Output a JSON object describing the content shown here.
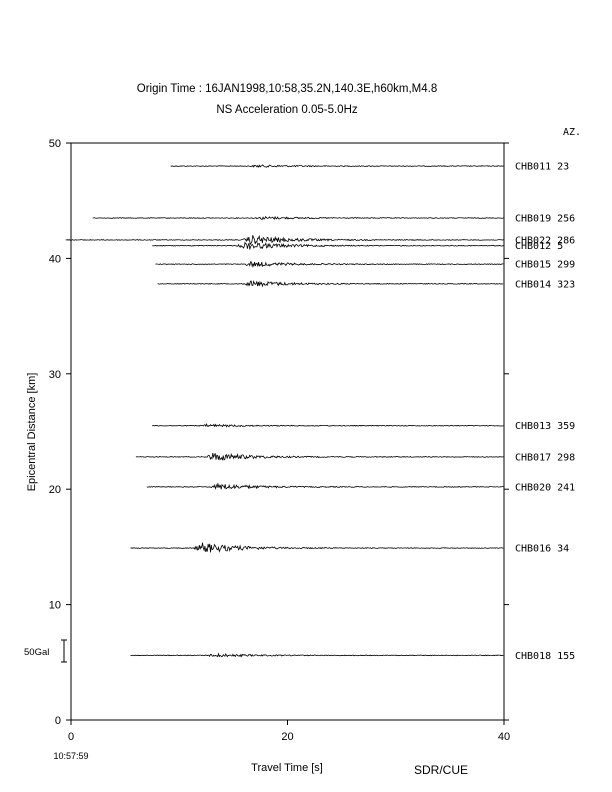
{
  "chart_data": {
    "type": "line",
    "title": "Origin Time : 16JAN1998,10:58,35.2N,140.3E,h60km,M4.8",
    "subtitle": "NS Acceleration 0.05-5.0Hz",
    "xlabel": "Travel Time [s]",
    "ylabel": "Epicentral Distance [km]",
    "xlim": [
      0,
      40
    ],
    "ylim": [
      0,
      50
    ],
    "x_ticks": [
      0,
      20,
      40
    ],
    "y_ticks": [
      0,
      10,
      20,
      30,
      40,
      50
    ],
    "x_tick_labels": [
      "0",
      "20",
      "40"
    ],
    "y_tick_labels": [
      "0",
      "10",
      "20",
      "30",
      "40",
      "50"
    ],
    "start_time_label": "10:57:59",
    "azimuth_header": "AZ.",
    "scale_label": "50Gal",
    "scale_value_gal": 50,
    "credit": "SDR/CUE",
    "stations": [
      {
        "label": "CHB011 23",
        "station": "CHB011",
        "azimuth": 23,
        "distance_km": 48.0,
        "record_start_s": 9.2,
        "peak_time_s": 17.0,
        "amplitude_gal": 5
      },
      {
        "label": "CHB019 256",
        "station": "CHB019",
        "azimuth": 256,
        "distance_km": 43.5,
        "record_start_s": 2.0,
        "peak_time_s": 17.5,
        "amplitude_gal": 6
      },
      {
        "label": "CHB022 286",
        "station": "CHB022",
        "azimuth": 286,
        "distance_km": 41.6,
        "record_start_s": -0.5,
        "peak_time_s": 16.5,
        "amplitude_gal": 22
      },
      {
        "label": "CHB012 5",
        "station": "CHB012",
        "azimuth": 5,
        "distance_km": 41.1,
        "record_start_s": 7.5,
        "peak_time_s": 16.0,
        "amplitude_gal": 18
      },
      {
        "label": "CHB015 299",
        "station": "CHB015",
        "azimuth": 299,
        "distance_km": 39.5,
        "record_start_s": 7.8,
        "peak_time_s": 16.5,
        "amplitude_gal": 12
      },
      {
        "label": "CHB014 323",
        "station": "CHB014",
        "azimuth": 323,
        "distance_km": 37.8,
        "record_start_s": 8.0,
        "peak_time_s": 16.5,
        "amplitude_gal": 14
      },
      {
        "label": "CHB013 359",
        "station": "CHB013",
        "azimuth": 359,
        "distance_km": 25.5,
        "record_start_s": 7.5,
        "peak_time_s": 12.5,
        "amplitude_gal": 6
      },
      {
        "label": "CHB017 298",
        "station": "CHB017",
        "azimuth": 298,
        "distance_km": 22.8,
        "record_start_s": 6.0,
        "peak_time_s": 13.0,
        "amplitude_gal": 20
      },
      {
        "label": "CHB020 241",
        "station": "CHB020",
        "azimuth": 241,
        "distance_km": 20.2,
        "record_start_s": 7.0,
        "peak_time_s": 13.5,
        "amplitude_gal": 14
      },
      {
        "label": "CHB016 34",
        "station": "CHB016",
        "azimuth": 34,
        "distance_km": 14.9,
        "record_start_s": 5.5,
        "peak_time_s": 12.0,
        "amplitude_gal": 25
      },
      {
        "label": "CHB018 155",
        "station": "CHB018",
        "azimuth": 155,
        "distance_km": 5.6,
        "record_start_s": 5.5,
        "peak_time_s": 13.0,
        "amplitude_gal": 8
      }
    ]
  }
}
